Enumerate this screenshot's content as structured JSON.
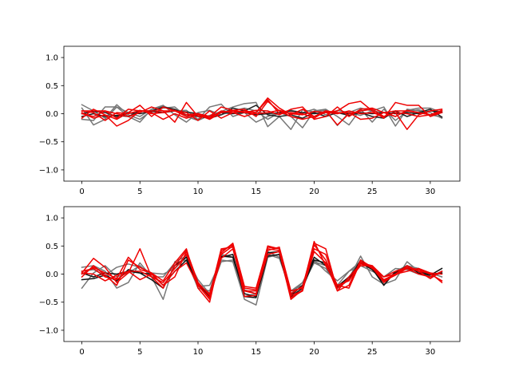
{
  "chart_data": [
    {
      "type": "line",
      "title": "",
      "xlabel": "",
      "ylabel": "",
      "xlim": [
        -1.55,
        32.55
      ],
      "ylim": [
        -1.2,
        1.2
      ],
      "x_ticks": [
        0,
        5,
        10,
        15,
        20,
        25,
        30
      ],
      "y_ticks": [
        -1.0,
        -0.5,
        0.0,
        0.5,
        1.0
      ],
      "y_tick_labels": [
        "−1.0",
        "−0.5",
        "0.0",
        "0.5",
        "1.0"
      ],
      "grid": false,
      "legend": "none",
      "series": [
        {
          "color": "#777777",
          "values": [
            0.16,
            0.05,
            -0.08,
            0.16,
            -0.02,
            -0.1,
            0.05,
            0.1,
            0.12,
            -0.05,
            -0.12,
            -0.03,
            0.04,
            0.12,
            0.18,
            0.2,
            -0.23,
            -0.05,
            -0.28,
            0.07,
            0.03,
            0.06,
            -0.21,
            0.02,
            -0.03,
            0.05,
            0.12,
            -0.22,
            0.08,
            0.05,
            -0.02,
            -0.06
          ]
        },
        {
          "color": "#777777",
          "values": [
            0.1,
            -0.2,
            -0.1,
            0.12,
            -0.05,
            -0.15,
            0.08,
            0.14,
            0.05,
            0.06,
            -0.1,
            0.12,
            0.17,
            -0.05,
            0.02,
            -0.15,
            -0.05,
            0.02,
            -0.05,
            -0.25,
            0.05,
            0.08,
            -0.05,
            -0.2,
            0.08,
            -0.15,
            0.08,
            -0.12,
            0.04,
            0.07,
            0.02,
            -0.08
          ]
        },
        {
          "color": "#777777",
          "values": [
            -0.1,
            -0.12,
            0.12,
            0.12,
            0.02,
            -0.05,
            0.08,
            0.15,
            -0.02,
            -0.15,
            0.02,
            0.06,
            -0.02,
            0.05,
            0.1,
            0.05,
            -0.1,
            0.02,
            0.06,
            0.02,
            0.08,
            -0.02,
            0.06,
            0.02,
            0.1,
            0.05,
            0.02,
            -0.05,
            0.06,
            0.1,
            0.1,
            0.02
          ]
        },
        {
          "color": "#222222",
          "values": [
            -0.05,
            0.0,
            -0.05,
            -0.03,
            -0.05,
            0.05,
            0.05,
            0.12,
            0.08,
            -0.02,
            -0.05,
            -0.08,
            -0.02,
            0.1,
            0.05,
            0.15,
            -0.02,
            -0.05,
            -0.02,
            -0.08,
            0.02,
            -0.05,
            0.02,
            -0.03,
            0.02,
            -0.05,
            -0.08,
            0.05,
            -0.05,
            0.02,
            0.08,
            -0.06
          ]
        },
        {
          "color": "#222222",
          "values": [
            0.0,
            0.04,
            0.02,
            -0.05,
            0.02,
            0.0,
            0.04,
            0.02,
            0.05,
            0.03,
            0.0,
            -0.05,
            0.02,
            0.0,
            0.02,
            -0.02,
            0.0,
            0.02,
            0.05,
            0.02,
            0.0,
            0.02,
            0.02,
            0.0,
            0.02,
            0.0,
            0.02,
            0.0,
            0.02,
            0.0,
            0.05,
            0.03
          ]
        },
        {
          "color": "#ee0000",
          "values": [
            0.02,
            -0.08,
            -0.02,
            -0.22,
            -0.12,
            0.05,
            0.02,
            -0.1,
            0.0,
            -0.08,
            -0.02,
            -0.1,
            0.02,
            0.06,
            0.08,
            -0.05,
            0.22,
            0.05,
            -0.05,
            -0.1,
            -0.05,
            0.05,
            -0.2,
            0.0,
            0.05,
            0.08,
            -0.05,
            0.02,
            -0.28,
            -0.02,
            0.05,
            0.08
          ]
        },
        {
          "color": "#ee0000",
          "values": [
            -0.08,
            0.08,
            -0.02,
            -0.1,
            0.02,
            0.15,
            -0.05,
            0.12,
            0.05,
            0.02,
            -0.12,
            0.05,
            -0.08,
            0.02,
            -0.05,
            0.02,
            0.28,
            0.1,
            -0.02,
            0.08,
            -0.05,
            0.02,
            0.05,
            0.18,
            0.22,
            0.05,
            -0.08,
            0.2,
            0.15,
            0.15,
            -0.05,
            0.02
          ]
        },
        {
          "color": "#ee0000",
          "values": [
            0.05,
            0.05,
            0.05,
            -0.08,
            0.08,
            0.05,
            0.05,
            0.05,
            -0.15,
            0.2,
            -0.05,
            -0.05,
            0.12,
            0.06,
            0.02,
            0.06,
            0.05,
            -0.02,
            0.08,
            0.12,
            -0.1,
            -0.05,
            0.12,
            -0.05,
            0.08,
            0.1,
            0.02,
            -0.05,
            0.06,
            0.02,
            -0.02,
            0.06
          ]
        },
        {
          "color": "#ee0000",
          "values": [
            0.0,
            -0.05,
            0.05,
            0.0,
            -0.05,
            0.02,
            0.12,
            0.05,
            0.05,
            -0.05,
            0.0,
            -0.08,
            0.05,
            0.02,
            0.05,
            0.02,
            0.25,
            0.0,
            0.02,
            0.0,
            -0.08,
            0.05,
            0.02,
            0.02,
            -0.1,
            -0.08,
            0.02,
            0.05,
            0.05,
            0.02,
            -0.02,
            0.05
          ]
        },
        {
          "color": "#ee0000",
          "values": [
            0.05,
            0.02,
            -0.12,
            0.02,
            0.0,
            0.06,
            0.0,
            0.02,
            0.06,
            -0.02,
            0.0,
            -0.05,
            0.02,
            0.05,
            0.02,
            0.0,
            0.02,
            0.06,
            0.0,
            -0.02,
            0.04,
            0.02,
            0.0,
            0.05,
            0.0,
            0.02,
            -0.05,
            0.02,
            0.0,
            -0.05,
            -0.02,
            0.02
          ]
        }
      ]
    },
    {
      "type": "line",
      "title": "",
      "xlabel": "",
      "ylabel": "",
      "xlim": [
        -1.55,
        32.55
      ],
      "ylim": [
        -1.2,
        1.2
      ],
      "x_ticks": [
        0,
        5,
        10,
        15,
        20,
        25,
        30
      ],
      "y_ticks": [
        -1.0,
        -0.5,
        0.0,
        0.5,
        1.0
      ],
      "y_tick_labels": [
        "−1.0",
        "−0.5",
        "0.0",
        "0.5",
        "1.0"
      ],
      "grid": false,
      "legend": "none",
      "series": [
        {
          "color": "#777777",
          "values": [
            0.12,
            0.15,
            0.05,
            -0.25,
            -0.15,
            0.2,
            -0.05,
            -0.45,
            0.22,
            0.32,
            -0.22,
            -0.2,
            0.25,
            0.22,
            -0.45,
            -0.55,
            0.3,
            0.35,
            -0.35,
            -0.15,
            0.22,
            0.15,
            -0.25,
            -0.08,
            0.32,
            -0.05,
            -0.18,
            -0.1,
            0.22,
            0.05,
            -0.05,
            0.05
          ]
        },
        {
          "color": "#777777",
          "values": [
            -0.25,
            0.02,
            0.15,
            -0.05,
            0.02,
            0.15,
            -0.05,
            -0.05,
            0.2,
            0.25,
            -0.25,
            -0.3,
            0.35,
            0.3,
            -0.4,
            -0.35,
            0.4,
            0.3,
            -0.3,
            -0.2,
            0.2,
            0.1,
            -0.2,
            0.05,
            0.22,
            0.1,
            -0.2,
            0.05,
            0.15,
            0.1,
            -0.05,
            0.02
          ]
        },
        {
          "color": "#777777",
          "values": [
            0.05,
            0.08,
            -0.02,
            0.12,
            0.18,
            0.12,
            0.02,
            0.0,
            0.1,
            0.3,
            -0.1,
            -0.35,
            0.22,
            0.25,
            -0.28,
            -0.35,
            0.35,
            0.28,
            -0.3,
            -0.15,
            0.25,
            0.05,
            -0.12,
            0.05,
            0.15,
            0.05,
            -0.05,
            0.1,
            0.08,
            0.0,
            0.02,
            -0.05
          ]
        },
        {
          "color": "#111111",
          "values": [
            -0.1,
            -0.08,
            -0.02,
            -0.12,
            0.08,
            0.02,
            -0.1,
            -0.25,
            0.15,
            0.3,
            -0.15,
            -0.4,
            0.3,
            0.35,
            -0.4,
            -0.42,
            0.32,
            0.35,
            -0.4,
            -0.25,
            0.25,
            0.2,
            -0.25,
            -0.1,
            0.25,
            0.1,
            -0.2,
            0.05,
            0.1,
            0.05,
            0.0,
            0.02
          ]
        },
        {
          "color": "#111111",
          "values": [
            0.02,
            -0.05,
            0.02,
            0.0,
            0.05,
            0.02,
            0.0,
            -0.2,
            0.05,
            0.25,
            -0.2,
            -0.38,
            0.32,
            0.3,
            -0.35,
            -0.4,
            0.38,
            0.4,
            -0.38,
            -0.2,
            0.3,
            0.15,
            -0.22,
            -0.05,
            0.2,
            0.08,
            -0.15,
            0.02,
            0.15,
            0.02,
            -0.02,
            0.1
          ]
        },
        {
          "color": "#ee0000",
          "values": [
            0.02,
            0.28,
            0.12,
            -0.15,
            0.02,
            0.45,
            -0.05,
            -0.25,
            0.15,
            0.42,
            -0.15,
            -0.38,
            0.45,
            0.48,
            -0.3,
            -0.3,
            0.5,
            0.45,
            -0.42,
            -0.3,
            0.55,
            0.45,
            -0.3,
            -0.2,
            0.25,
            0.12,
            -0.1,
            0.0,
            0.15,
            0.05,
            -0.08,
            0.05
          ]
        },
        {
          "color": "#ee0000",
          "values": [
            0.0,
            0.12,
            0.02,
            -0.08,
            0.3,
            0.08,
            0.02,
            -0.12,
            0.2,
            0.45,
            -0.25,
            -0.5,
            0.42,
            0.52,
            -0.25,
            -0.28,
            0.42,
            0.48,
            -0.3,
            -0.25,
            0.58,
            0.15,
            -0.2,
            -0.25,
            0.22,
            0.1,
            -0.05,
            0.0,
            0.05,
            0.1,
            0.02,
            -0.15
          ]
        },
        {
          "color": "#ee0000",
          "values": [
            -0.05,
            0.15,
            -0.02,
            -0.2,
            0.25,
            0.12,
            0.02,
            -0.2,
            -0.05,
            0.4,
            -0.2,
            -0.45,
            0.35,
            0.5,
            -0.4,
            -0.38,
            0.45,
            0.42,
            -0.38,
            -0.3,
            0.45,
            0.35,
            -0.25,
            -0.1,
            0.15,
            0.15,
            -0.12,
            -0.02,
            0.1,
            0.0,
            -0.05,
            0.05
          ]
        },
        {
          "color": "#ee0000",
          "values": [
            0.05,
            0.1,
            -0.05,
            -0.1,
            0.05,
            0.05,
            -0.05,
            -0.15,
            0.1,
            0.35,
            -0.18,
            -0.35,
            0.38,
            0.55,
            -0.22,
            -0.25,
            0.48,
            0.45,
            -0.35,
            -0.22,
            0.52,
            0.25,
            -0.2,
            -0.12,
            0.2,
            0.15,
            -0.05,
            0.05,
            0.12,
            0.05,
            0.02,
            0.0
          ]
        },
        {
          "color": "#ee0000",
          "values": [
            0.02,
            0.0,
            -0.12,
            -0.02,
            0.05,
            -0.1,
            0.0,
            -0.2,
            0.05,
            0.2,
            -0.2,
            -0.42,
            0.28,
            0.45,
            -0.3,
            -0.35,
            0.35,
            0.4,
            -0.45,
            -0.28,
            0.4,
            0.2,
            -0.3,
            -0.05,
            0.18,
            0.12,
            -0.15,
            0.0,
            0.12,
            0.08,
            0.0,
            -0.12
          ]
        }
      ]
    }
  ]
}
